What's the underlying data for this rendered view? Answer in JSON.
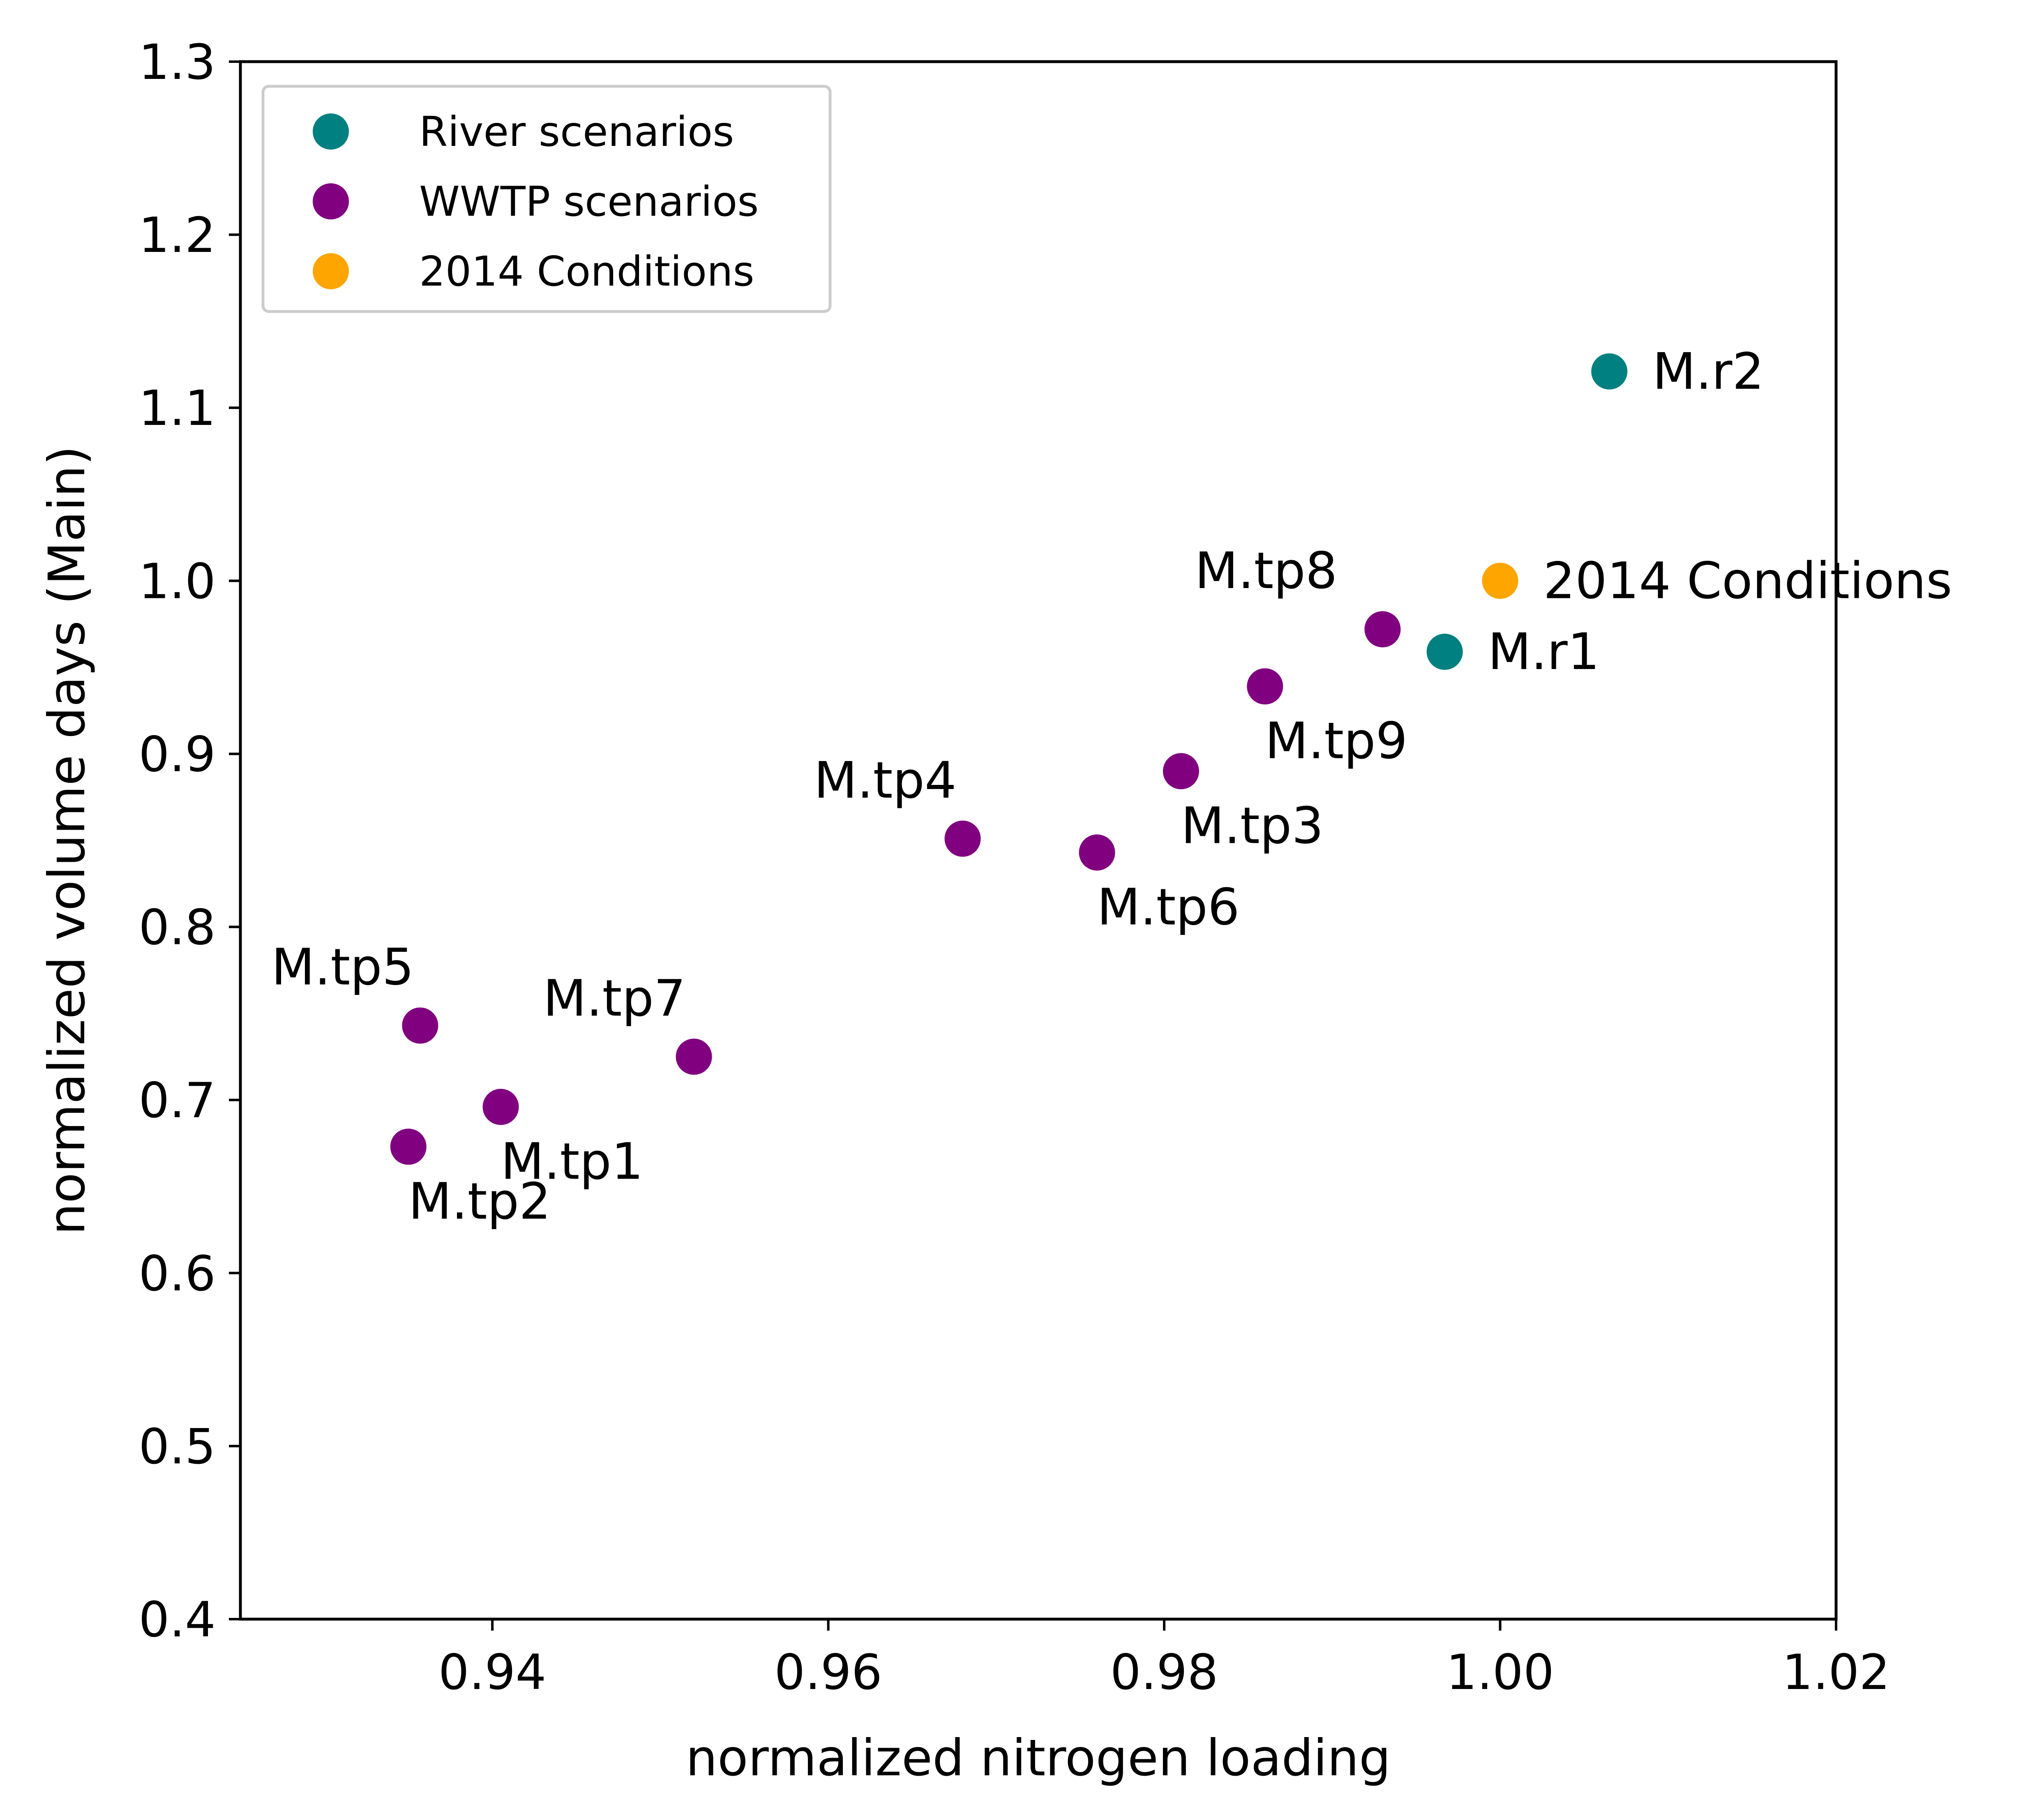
{
  "chart_data": {
    "type": "scatter",
    "title": "",
    "xlabel": "normalized nitrogen loading",
    "ylabel": "normalized volume days (Main)",
    "xlim": [
      0.925,
      1.02
    ],
    "ylim": [
      0.4,
      1.3
    ],
    "xticks": [
      0.94,
      0.96,
      0.98,
      1.0,
      1.02
    ],
    "xtick_labels": [
      "0.94",
      "0.96",
      "0.98",
      "1.00",
      "1.02"
    ],
    "yticks": [
      0.4,
      0.5,
      0.6,
      0.7,
      0.8,
      0.9,
      1.0,
      1.1,
      1.2,
      1.3
    ],
    "ytick_labels": [
      "0.4",
      "0.5",
      "0.6",
      "0.7",
      "0.8",
      "0.9",
      "1.0",
      "1.1",
      "1.2",
      "1.3"
    ],
    "grid": false,
    "legend_position": "top-left",
    "series": [
      {
        "name": "River scenarios",
        "color": "#008080",
        "points": [
          {
            "label": "M.r2",
            "x": 1.0065,
            "y": 1.121
          },
          {
            "label": "M.r1",
            "x": 0.9967,
            "y": 0.959
          }
        ]
      },
      {
        "name": "WWTP scenarios",
        "color": "#800080",
        "points": [
          {
            "label": "M.tp8",
            "x": 0.993,
            "y": 0.972
          },
          {
            "label": "M.tp9",
            "x": 0.986,
            "y": 0.939
          },
          {
            "label": "M.tp3",
            "x": 0.981,
            "y": 0.89
          },
          {
            "label": "M.tp4",
            "x": 0.968,
            "y": 0.851
          },
          {
            "label": "M.tp6",
            "x": 0.976,
            "y": 0.843
          },
          {
            "label": "M.tp5",
            "x": 0.9357,
            "y": 0.743
          },
          {
            "label": "M.tp7",
            "x": 0.952,
            "y": 0.725
          },
          {
            "label": "M.tp1",
            "x": 0.9405,
            "y": 0.696
          },
          {
            "label": "M.tp2",
            "x": 0.935,
            "y": 0.673
          }
        ]
      },
      {
        "name": "2014 Conditions",
        "color": "#FFA500",
        "points": [
          {
            "label": "2014 Conditions",
            "x": 1.0,
            "y": 1.0
          }
        ]
      }
    ]
  }
}
